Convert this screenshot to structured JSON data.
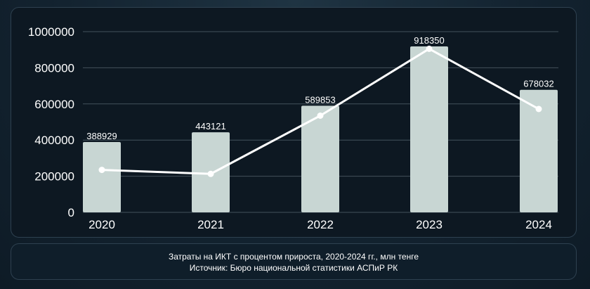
{
  "chart_data": {
    "type": "bar",
    "categories": [
      "2020",
      "2021",
      "2022",
      "2023",
      "2024"
    ],
    "series": [
      {
        "values": [
          388929,
          443121,
          589853,
          918350,
          678032
        ]
      },
      {
        "type": "line",
        "values": [
          235000,
          213000,
          535000,
          905000,
          572000
        ]
      }
    ],
    "data_labels": [
      "388929",
      "443121",
      "589853",
      "918350",
      "678032"
    ],
    "y_ticks": [
      "0",
      "200000",
      "400000",
      "600000",
      "800000",
      "1000000"
    ],
    "ylim": [
      0,
      1000000
    ],
    "grid": true,
    "colors": {
      "bar": "#c8d6d3",
      "line": "#ffffff",
      "grid": "#44525c"
    }
  },
  "caption": {
    "line1": "Затраты на ИКТ с процентом прироста, 2020-2024 гг., млн тенге",
    "line2": "Источник: Бюро национальной статистики АСПиР РК"
  }
}
